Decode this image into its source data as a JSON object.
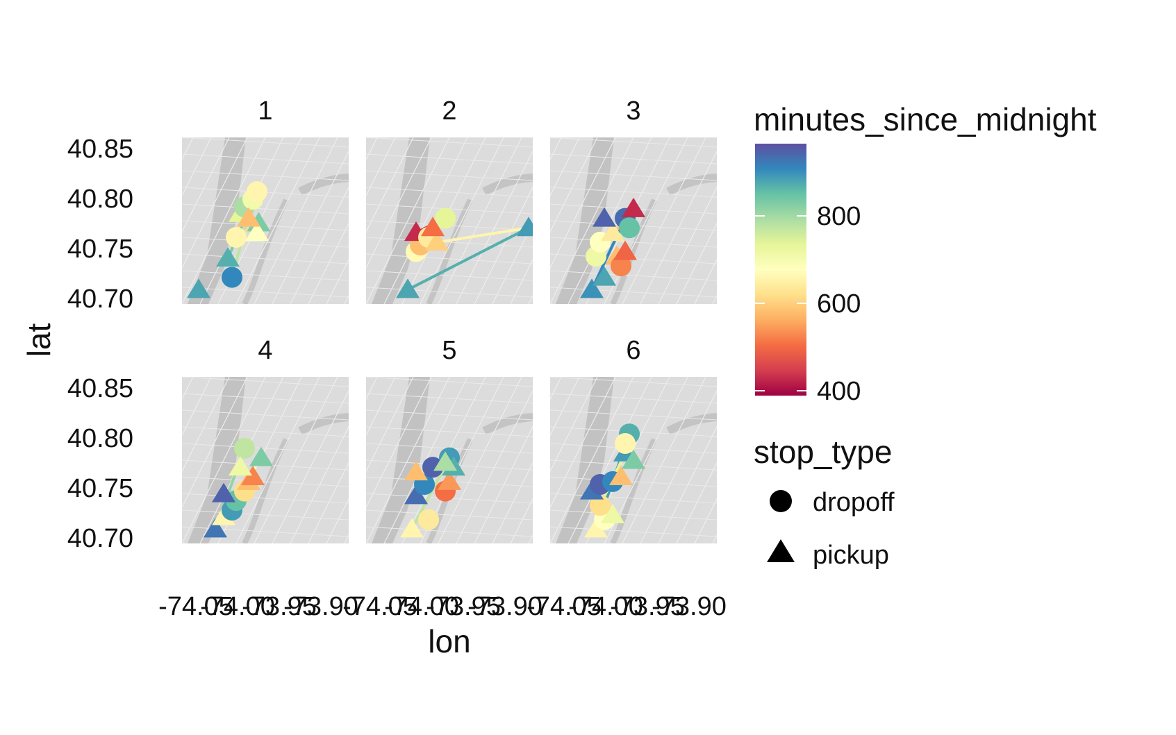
{
  "chart_data": {
    "type": "scatter",
    "xlabel": "lon",
    "ylabel": "lat",
    "facets": [
      "1",
      "2",
      "3",
      "4",
      "5",
      "6"
    ],
    "xlim": [
      -74.05,
      -73.85
    ],
    "ylim": [
      40.69,
      40.865
    ],
    "x_ticks": [
      "-74.05",
      "-74.00",
      "-73.95",
      "-73.90"
    ],
    "x_tick_values": [
      -74.05,
      -74.0,
      -73.95,
      -73.9
    ],
    "y_ticks": [
      "40.70",
      "40.75",
      "40.80",
      "40.85"
    ],
    "y_tick_values": [
      40.7,
      40.75,
      40.8,
      40.85
    ],
    "background": "street map tiles (grey)",
    "grid": false,
    "color_legend": {
      "title": "minutes_since_midnight",
      "labels": [
        "800",
        "600",
        "400"
      ],
      "label_values": [
        800,
        600,
        400
      ],
      "range": [
        360,
        960
      ],
      "palette": "Spectral",
      "colors": [
        "#9e0142",
        "#d53e4f",
        "#f46d43",
        "#fdae61",
        "#fee08b",
        "#ffffbf",
        "#e6f598",
        "#abdda4",
        "#66c2a5",
        "#3288bd",
        "#5e4fa2"
      ]
    },
    "shape_legend": {
      "title": "stop_type",
      "items": [
        {
          "label": "dropoff",
          "shape": "circle"
        },
        {
          "label": "pickup",
          "shape": "triangle"
        }
      ]
    },
    "legend_position": "right",
    "panels": [
      {
        "facet": "1",
        "points": [
          {
            "lon": -74.03,
            "lat": 40.705,
            "min": 870,
            "type": "pickup"
          },
          {
            "lon": -73.99,
            "lat": 40.718,
            "min": 900,
            "type": "dropoff"
          },
          {
            "lon": -73.995,
            "lat": 40.738,
            "min": 860,
            "type": "pickup"
          },
          {
            "lon": -73.985,
            "lat": 40.76,
            "min": 640,
            "type": "dropoff"
          },
          {
            "lon": -73.98,
            "lat": 40.785,
            "min": 720,
            "type": "pickup"
          },
          {
            "lon": -73.975,
            "lat": 40.792,
            "min": 780,
            "type": "dropoff"
          },
          {
            "lon": -73.965,
            "lat": 40.8,
            "min": 690,
            "type": "dropoff"
          },
          {
            "lon": -73.96,
            "lat": 40.808,
            "min": 640,
            "type": "dropoff"
          },
          {
            "lon": -73.958,
            "lat": 40.775,
            "min": 820,
            "type": "pickup"
          },
          {
            "lon": -73.96,
            "lat": 40.765,
            "min": 660,
            "type": "pickup"
          },
          {
            "lon": -73.97,
            "lat": 40.78,
            "min": 560,
            "type": "pickup"
          }
        ],
        "segments": [
          {
            "from": [
              -73.99,
              40.718
            ],
            "to": [
              -73.965,
              40.8
            ],
            "min": 760
          },
          {
            "from": [
              -73.995,
              40.738
            ],
            "to": [
              -73.96,
              40.808
            ],
            "min": 820
          },
          {
            "from": [
              -73.985,
              40.76
            ],
            "to": [
              -73.958,
              40.775
            ],
            "min": 600
          }
        ]
      },
      {
        "facet": "2",
        "points": [
          {
            "lon": -74.0,
            "lat": 40.705,
            "min": 870,
            "type": "pickup"
          },
          {
            "lon": -73.99,
            "lat": 40.745,
            "min": 650,
            "type": "dropoff"
          },
          {
            "lon": -73.985,
            "lat": 40.752,
            "min": 560,
            "type": "dropoff"
          },
          {
            "lon": -73.99,
            "lat": 40.765,
            "min": 400,
            "type": "pickup"
          },
          {
            "lon": -73.975,
            "lat": 40.76,
            "min": 620,
            "type": "dropoff"
          },
          {
            "lon": -73.965,
            "lat": 40.755,
            "min": 580,
            "type": "pickup"
          },
          {
            "lon": -73.955,
            "lat": 40.78,
            "min": 720,
            "type": "dropoff"
          },
          {
            "lon": -73.97,
            "lat": 40.77,
            "min": 480,
            "type": "pickup"
          },
          {
            "lon": -73.855,
            "lat": 40.77,
            "min": 880,
            "type": "pickup"
          }
        ],
        "segments": [
          {
            "from": [
              -74.0,
              40.705
            ],
            "to": [
              -73.855,
              40.77
            ],
            "min": 860
          },
          {
            "from": [
              -73.985,
              40.752
            ],
            "to": [
              -73.855,
              40.77
            ],
            "min": 640
          },
          {
            "from": [
              -73.99,
              40.765
            ],
            "to": [
              -73.955,
              40.78
            ],
            "min": 420
          }
        ]
      },
      {
        "facet": "3",
        "points": [
          {
            "lon": -74.0,
            "lat": 40.705,
            "min": 890,
            "type": "pickup"
          },
          {
            "lon": -73.985,
            "lat": 40.718,
            "min": 870,
            "type": "pickup"
          },
          {
            "lon": -73.995,
            "lat": 40.74,
            "min": 700,
            "type": "dropoff"
          },
          {
            "lon": -73.99,
            "lat": 40.755,
            "min": 660,
            "type": "dropoff"
          },
          {
            "lon": -73.97,
            "lat": 40.74,
            "min": 560,
            "type": "pickup"
          },
          {
            "lon": -73.965,
            "lat": 40.73,
            "min": 500,
            "type": "dropoff"
          },
          {
            "lon": -73.96,
            "lat": 40.745,
            "min": 470,
            "type": "pickup"
          },
          {
            "lon": -73.975,
            "lat": 40.765,
            "min": 620,
            "type": "pickup"
          },
          {
            "lon": -73.985,
            "lat": 40.78,
            "min": 940,
            "type": "pickup"
          },
          {
            "lon": -73.96,
            "lat": 40.78,
            "min": 930,
            "type": "dropoff"
          },
          {
            "lon": -73.95,
            "lat": 40.79,
            "min": 400,
            "type": "pickup"
          },
          {
            "lon": -73.955,
            "lat": 40.77,
            "min": 840,
            "type": "dropoff"
          }
        ],
        "segments": [
          {
            "from": [
              -74.0,
              40.705
            ],
            "to": [
              -73.96,
              40.78
            ],
            "min": 900
          },
          {
            "from": [
              -73.995,
              40.74
            ],
            "to": [
              -73.95,
              40.79
            ],
            "min": 560
          }
        ]
      },
      {
        "facet": "4",
        "points": [
          {
            "lon": -74.01,
            "lat": 40.705,
            "min": 920,
            "type": "pickup"
          },
          {
            "lon": -74.0,
            "lat": 40.718,
            "min": 640,
            "type": "pickup"
          },
          {
            "lon": -73.99,
            "lat": 40.725,
            "min": 880,
            "type": "dropoff"
          },
          {
            "lon": -73.985,
            "lat": 40.735,
            "min": 840,
            "type": "dropoff"
          },
          {
            "lon": -74.0,
            "lat": 40.742,
            "min": 940,
            "type": "pickup"
          },
          {
            "lon": -73.975,
            "lat": 40.745,
            "min": 600,
            "type": "dropoff"
          },
          {
            "lon": -73.97,
            "lat": 40.755,
            "min": 560,
            "type": "pickup"
          },
          {
            "lon": -73.965,
            "lat": 40.76,
            "min": 500,
            "type": "pickup"
          },
          {
            "lon": -73.975,
            "lat": 40.79,
            "min": 760,
            "type": "dropoff"
          },
          {
            "lon": -73.955,
            "lat": 40.78,
            "min": 820,
            "type": "pickup"
          },
          {
            "lon": -73.98,
            "lat": 40.77,
            "min": 700,
            "type": "pickup"
          }
        ],
        "segments": [
          {
            "from": [
              -74.01,
              40.705
            ],
            "to": [
              -73.975,
              40.79
            ],
            "min": 800
          },
          {
            "from": [
              -74.0,
              40.718
            ],
            "to": [
              -73.955,
              40.78
            ],
            "min": 650
          }
        ]
      },
      {
        "facet": "5",
        "points": [
          {
            "lon": -73.995,
            "lat": 40.705,
            "min": 640,
            "type": "pickup"
          },
          {
            "lon": -73.975,
            "lat": 40.715,
            "min": 620,
            "type": "dropoff"
          },
          {
            "lon": -73.99,
            "lat": 40.74,
            "min": 930,
            "type": "pickup"
          },
          {
            "lon": -73.98,
            "lat": 40.752,
            "min": 900,
            "type": "dropoff"
          },
          {
            "lon": -73.99,
            "lat": 40.765,
            "min": 560,
            "type": "pickup"
          },
          {
            "lon": -73.97,
            "lat": 40.77,
            "min": 940,
            "type": "dropoff"
          },
          {
            "lon": -73.955,
            "lat": 40.745,
            "min": 480,
            "type": "dropoff"
          },
          {
            "lon": -73.95,
            "lat": 40.755,
            "min": 520,
            "type": "pickup"
          },
          {
            "lon": -73.95,
            "lat": 40.78,
            "min": 880,
            "type": "dropoff"
          },
          {
            "lon": -73.945,
            "lat": 40.77,
            "min": 860,
            "type": "pickup"
          },
          {
            "lon": -73.955,
            "lat": 40.775,
            "min": 780,
            "type": "pickup"
          }
        ],
        "segments": [
          {
            "from": [
              -73.995,
              40.705
            ],
            "to": [
              -73.95,
              40.78
            ],
            "min": 760
          },
          {
            "from": [
              -73.99,
              40.765
            ],
            "to": [
              -73.945,
              40.77
            ],
            "min": 680
          }
        ]
      },
      {
        "facet": "6",
        "points": [
          {
            "lon": -73.995,
            "lat": 40.705,
            "min": 640,
            "type": "pickup"
          },
          {
            "lon": -73.985,
            "lat": 40.715,
            "min": 660,
            "type": "dropoff"
          },
          {
            "lon": -73.975,
            "lat": 40.72,
            "min": 700,
            "type": "pickup"
          },
          {
            "lon": -73.99,
            "lat": 40.73,
            "min": 600,
            "type": "dropoff"
          },
          {
            "lon": -74.0,
            "lat": 40.745,
            "min": 920,
            "type": "pickup"
          },
          {
            "lon": -73.99,
            "lat": 40.752,
            "min": 940,
            "type": "dropoff"
          },
          {
            "lon": -73.975,
            "lat": 40.755,
            "min": 900,
            "type": "dropoff"
          },
          {
            "lon": -73.965,
            "lat": 40.76,
            "min": 560,
            "type": "pickup"
          },
          {
            "lon": -73.96,
            "lat": 40.785,
            "min": 880,
            "type": "pickup"
          },
          {
            "lon": -73.95,
            "lat": 40.777,
            "min": 820,
            "type": "pickup"
          },
          {
            "lon": -73.955,
            "lat": 40.805,
            "min": 860,
            "type": "dropoff"
          },
          {
            "lon": -73.96,
            "lat": 40.795,
            "min": 640,
            "type": "dropoff"
          }
        ],
        "segments": [
          {
            "from": [
              -73.995,
              40.705
            ],
            "to": [
              -73.955,
              40.805
            ],
            "min": 880
          },
          {
            "from": [
              -73.99,
              40.73
            ],
            "to": [
              -73.96,
              40.785
            ],
            "min": 720
          }
        ]
      }
    ]
  }
}
